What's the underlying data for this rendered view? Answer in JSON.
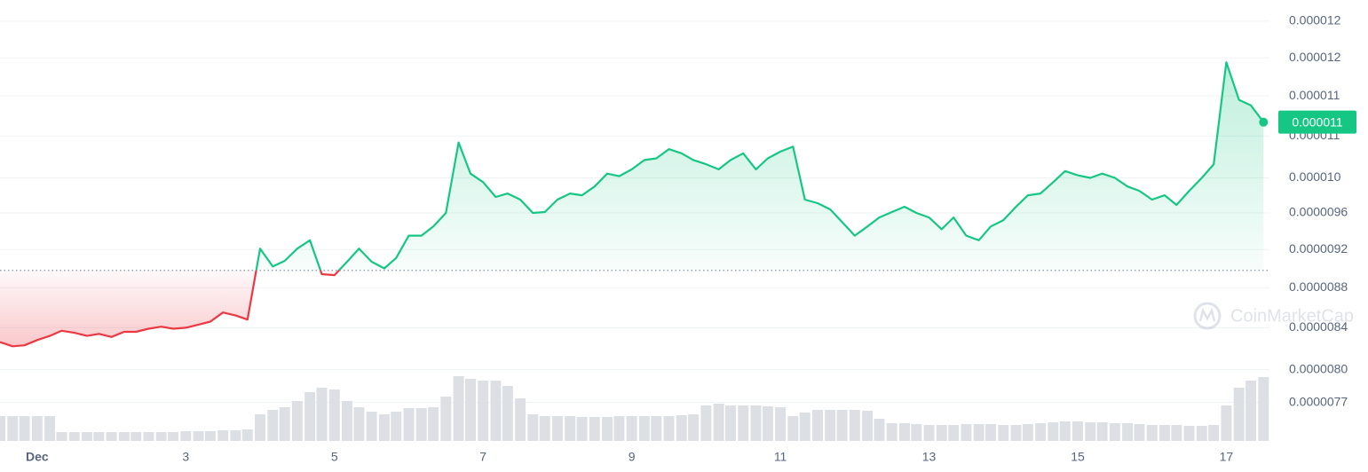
{
  "chart_data": {
    "type": "line",
    "x": [
      0.5,
      0.67,
      0.83,
      1,
      1.17,
      1.33,
      1.5,
      1.67,
      1.83,
      2,
      2.17,
      2.33,
      2.5,
      2.67,
      2.83,
      3,
      3.17,
      3.33,
      3.5,
      3.67,
      3.83,
      4,
      4.17,
      4.33,
      4.5,
      4.67,
      4.83,
      5,
      5.17,
      5.33,
      5.5,
      5.67,
      5.83,
      6,
      6.17,
      6.33,
      6.5,
      6.67,
      6.83,
      7,
      7.17,
      7.33,
      7.5,
      7.67,
      7.83,
      8,
      8.17,
      8.33,
      8.5,
      8.67,
      8.83,
      9,
      9.17,
      9.33,
      9.5,
      9.67,
      9.83,
      10,
      10.17,
      10.33,
      10.5,
      10.67,
      10.83,
      11,
      11.17,
      11.33,
      11.5,
      11.67,
      11.83,
      12,
      12.17,
      12.33,
      12.5,
      12.67,
      12.83,
      13,
      13.17,
      13.33,
      13.5,
      13.67,
      13.83,
      14,
      14.17,
      14.33,
      14.5,
      14.67,
      14.83,
      15,
      15.17,
      15.33,
      15.5,
      15.67,
      15.83,
      16,
      16.17,
      16.33,
      16.5,
      16.67,
      16.83,
      17,
      17.17,
      17.33,
      17.5
    ],
    "values": [
      8.26e-06,
      8.22e-06,
      8.23e-06,
      8.28e-06,
      8.32e-06,
      8.37e-06,
      8.35e-06,
      8.32e-06,
      8.34e-06,
      8.31e-06,
      8.36e-06,
      8.36e-06,
      8.39e-06,
      8.41e-06,
      8.39e-06,
      8.4e-06,
      8.43e-06,
      8.46e-06,
      8.55e-06,
      8.52e-06,
      8.48e-06,
      9.21e-06,
      9.02e-06,
      9.08e-06,
      9.21e-06,
      9.3e-06,
      8.94e-06,
      8.93e-06,
      9.07e-06,
      9.21e-06,
      9.07e-06,
      9e-06,
      9.11e-06,
      9.35e-06,
      9.35e-06,
      9.45e-06,
      9.6e-06,
      1.042e-05,
      1.005e-05,
      9.95e-06,
      9.78e-06,
      9.82e-06,
      9.75e-06,
      9.6e-06,
      9.61e-06,
      9.75e-06,
      9.82e-06,
      9.8e-06,
      9.9e-06,
      1.005e-05,
      1.002e-05,
      1.01e-05,
      1.021e-05,
      1.023e-05,
      1.034e-05,
      1.029e-05,
      1.021e-05,
      1.016e-05,
      1.01e-05,
      1.021e-05,
      1.029e-05,
      1.01e-05,
      1.023e-05,
      1.031e-05,
      1.037e-05,
      9.75e-06,
      9.71e-06,
      9.64e-06,
      9.5e-06,
      9.35e-06,
      9.45e-06,
      9.55e-06,
      9.61e-06,
      9.67e-06,
      9.6e-06,
      9.55e-06,
      9.42e-06,
      9.55e-06,
      9.35e-06,
      9.3e-06,
      9.45e-06,
      9.52e-06,
      9.67e-06,
      9.8e-06,
      9.82e-06,
      9.95e-06,
      1.008e-05,
      1.003e-05,
      1e-05,
      1.005e-05,
      1e-05,
      9.9e-06,
      9.85e-06,
      9.75e-06,
      9.8e-06,
      9.69e-06,
      9.85e-06,
      1e-05,
      1.016e-05,
      1.144e-05,
      1.095e-05,
      1.088e-05,
      1.067e-05
    ],
    "color_up": "#16c784",
    "color_down": "#ea3943",
    "baseline": 8.98e-06,
    "log_y": true,
    "grid": true,
    "ylim": [
      7.34e-06,
      1.23e-05
    ],
    "yticks": [
      {
        "value": 1.2e-05,
        "label": "0.000012"
      },
      {
        "value": 1.15e-05,
        "label": "0.000012"
      },
      {
        "value": 1.1e-05,
        "label": "0.000011"
      },
      {
        "value": 1.05e-05,
        "label": "0.000011"
      },
      {
        "value": 1e-05,
        "label": "0.000010"
      },
      {
        "value": 9.6e-06,
        "label": "0.0000096"
      },
      {
        "value": 9.2e-06,
        "label": "0.0000092"
      },
      {
        "value": 8.8e-06,
        "label": "0.0000088"
      },
      {
        "value": 8.4e-06,
        "label": "0.0000084"
      },
      {
        "value": 8e-06,
        "label": "0.0000080"
      },
      {
        "value": 7.7e-06,
        "label": "0.0000077"
      }
    ],
    "xlim": [
      0.5,
      17.58
    ],
    "xticks": [
      {
        "value": 1,
        "label": "Dec"
      },
      3,
      5,
      7,
      9,
      11,
      13,
      15,
      17
    ],
    "volume": {
      "color": "#dcdfe4",
      "ylim": [
        0,
        100
      ],
      "values": [
        28,
        28,
        28,
        28,
        28,
        10,
        10,
        10,
        10,
        10,
        10,
        10,
        10,
        10,
        10,
        11,
        11,
        11,
        12,
        12,
        13,
        30,
        35,
        38,
        45,
        55,
        60,
        58,
        45,
        38,
        33,
        30,
        33,
        37,
        37,
        38,
        50,
        73,
        70,
        68,
        68,
        62,
        48,
        30,
        28,
        28,
        28,
        27,
        27,
        27,
        28,
        28,
        28,
        28,
        28,
        29,
        30,
        40,
        42,
        40,
        40,
        40,
        39,
        38,
        28,
        32,
        35,
        35,
        35,
        35,
        34,
        25,
        20,
        20,
        19,
        18,
        18,
        18,
        19,
        19,
        19,
        18,
        18,
        19,
        20,
        21,
        22,
        22,
        21,
        21,
        20,
        20,
        19,
        18,
        18,
        18,
        17,
        17,
        18,
        40,
        60,
        68,
        72
      ]
    },
    "last_value_label": "0.000011",
    "watermark": "CoinMarketCap"
  }
}
